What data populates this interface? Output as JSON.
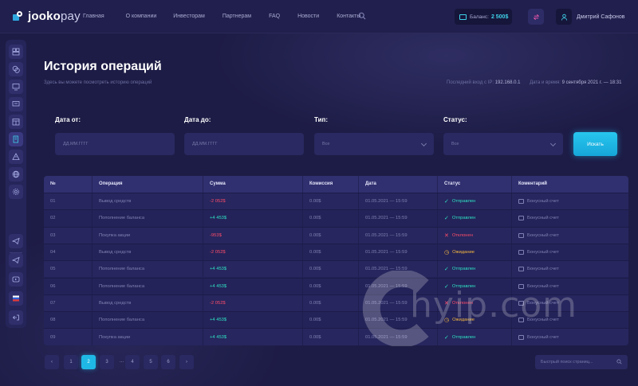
{
  "header": {
    "logo_bold": "jooko",
    "logo_light": "pay",
    "nav": [
      "Главная",
      "О компании",
      "Инвесторам",
      "Партнерам",
      "FAQ",
      "Новости",
      "Контакты"
    ],
    "balance_label": "Баланс:",
    "balance_value": "2 500$",
    "user_name": "Дмитрий Сафонов"
  },
  "page": {
    "title": "История операций",
    "subtitle": "Здесь вы можете посмотреть историю операций",
    "last_login_label": "Последний вход с IP:",
    "last_login_ip": "192.168.0.1",
    "datetime_label": "Дата и время:",
    "datetime_value": "9 сентября 2021 г. — 18:31"
  },
  "filters": {
    "date_from_label": "Дата от:",
    "date_from_placeholder": "ДД.ММ.ГГГГ",
    "date_to_label": "Дата до:",
    "date_to_placeholder": "ДД.ММ.ГГГГ",
    "type_label": "Тип:",
    "type_value": "Все",
    "status_label": "Статус:",
    "status_value": "Все",
    "search_button": "Искать"
  },
  "table": {
    "columns": [
      "№",
      "Операция",
      "Сумма",
      "Комиссия",
      "Дата",
      "Статус",
      "Коментарий"
    ],
    "rows": [
      {
        "n": "01",
        "op": "Вывод средств",
        "sum": "-2 052$",
        "sum_type": "neg",
        "fee": "0.00$",
        "date": "01.05.2021 — 15:59",
        "status": "Отправлен",
        "status_type": "sent",
        "comment": "Бонусный счет"
      },
      {
        "n": "02",
        "op": "Пополнение баланса",
        "sum": "+4 453$",
        "sum_type": "pos",
        "fee": "0.00$",
        "date": "01.05.2021 — 15:59",
        "status": "Отправлен",
        "status_type": "sent",
        "comment": "Бонусный счет"
      },
      {
        "n": "03",
        "op": "Покупка акции",
        "sum": "-953$",
        "sum_type": "neg",
        "fee": "0.00$",
        "date": "01.05.2021 — 15:59",
        "status": "Отклонен",
        "status_type": "rej",
        "comment": "Бонусный счет"
      },
      {
        "n": "04",
        "op": "Вывод средств",
        "sum": "-2 052$",
        "sum_type": "neg",
        "fee": "0.00$",
        "date": "01.05.2021 — 15:59",
        "status": "Ожидание",
        "status_type": "wait",
        "comment": "Бонусный счет"
      },
      {
        "n": "05",
        "op": "Пополнение баланса",
        "sum": "+4 453$",
        "sum_type": "pos",
        "fee": "0.00$",
        "date": "01.05.2021 — 15:59",
        "status": "Отправлен",
        "status_type": "sent",
        "comment": "Бонусный счет"
      },
      {
        "n": "06",
        "op": "Пополнение баланса",
        "sum": "+4 453$",
        "sum_type": "pos",
        "fee": "0.00$",
        "date": "01.05.2021 — 15:59",
        "status": "Отправлен",
        "status_type": "sent",
        "comment": "Бонусный счет"
      },
      {
        "n": "07",
        "op": "Вывод средств",
        "sum": "-2 052$",
        "sum_type": "neg",
        "fee": "0.00$",
        "date": "01.05.2021 — 15:59",
        "status": "Отклонен",
        "status_type": "rej",
        "comment": "Бонусный счет"
      },
      {
        "n": "08",
        "op": "Пополнение баланса",
        "sum": "+4 453$",
        "sum_type": "pos",
        "fee": "0.00$",
        "date": "01.05.2021 — 15:59",
        "status": "Ожидание",
        "status_type": "wait",
        "comment": "Бонусный счет"
      },
      {
        "n": "09",
        "op": "Покупка акции",
        "sum": "+4 453$",
        "sum_type": "pos",
        "fee": "0.00$",
        "date": "01.05.2021 — 15:59",
        "status": "Отправлен",
        "status_type": "sent",
        "comment": "Бонусный счет"
      }
    ]
  },
  "pagination": {
    "pages": [
      "1",
      "2",
      "3",
      "4",
      "5",
      "6"
    ],
    "current": "2",
    "dots": "..."
  },
  "quick_search_placeholder": "Быстрый поиск страниц...",
  "watermark_text": "hyip.com",
  "colors": {
    "accent": "#1fb8e6",
    "positive": "#2ee0c2",
    "negative": "#ff4d6a",
    "pending": "#f4b840"
  }
}
